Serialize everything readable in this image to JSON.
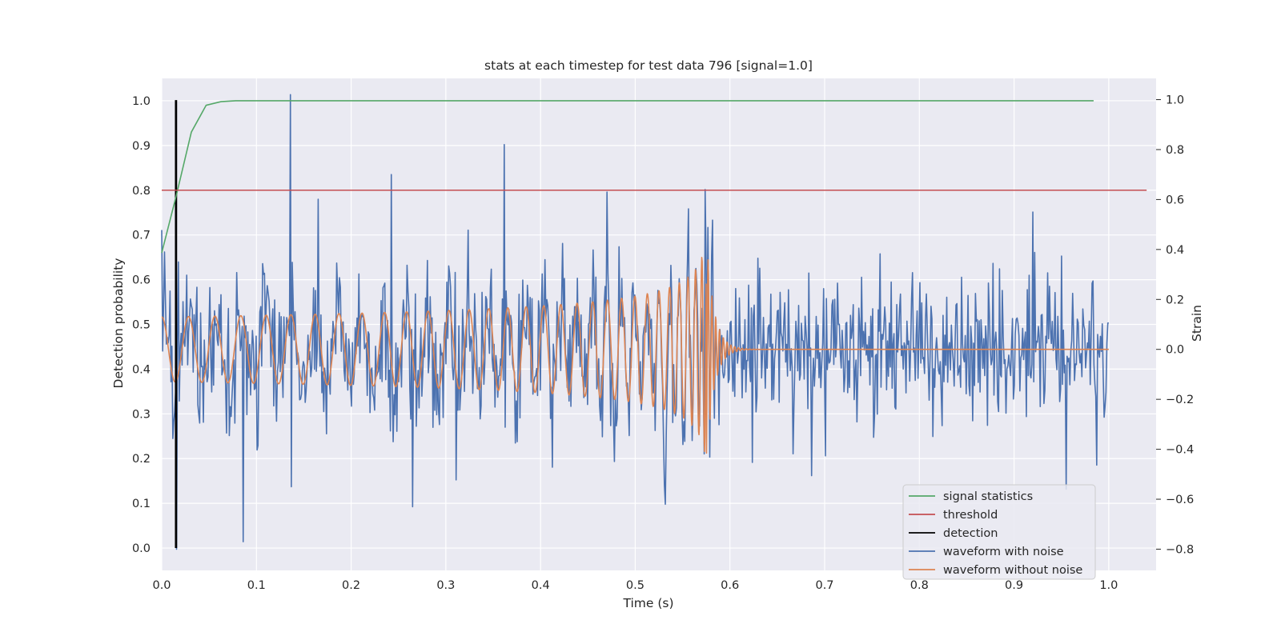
{
  "chart_data": {
    "type": "line",
    "title": "stats at each timestep for test data 796 [signal=1.0]",
    "xlabel": "Time (s)",
    "ylabel": "Detection probability",
    "y2label": "Strain",
    "xlim": [
      0.0,
      1.05
    ],
    "ylim": [
      -0.05,
      1.05
    ],
    "y2lim": [
      -0.885,
      1.085
    ],
    "xticks": [
      0.0,
      0.1,
      0.2,
      0.3,
      0.4,
      0.5,
      0.6,
      0.7,
      0.8,
      0.9,
      1.0
    ],
    "xtick_labels": [
      "0.0",
      "0.1",
      "0.2",
      "0.3",
      "0.4",
      "0.5",
      "0.6",
      "0.7",
      "0.8",
      "0.9",
      "1.0"
    ],
    "yticks": [
      0.0,
      0.1,
      0.2,
      0.3,
      0.4,
      0.5,
      0.6,
      0.7,
      0.8,
      0.9,
      1.0
    ],
    "ytick_labels": [
      "0.0",
      "0.1",
      "0.2",
      "0.3",
      "0.4",
      "0.5",
      "0.6",
      "0.7",
      "0.8",
      "0.9",
      "1.0"
    ],
    "y2ticks": [
      -0.8,
      -0.6,
      -0.4,
      -0.2,
      0.0,
      0.2,
      0.4,
      0.6,
      0.8,
      1.0
    ],
    "y2tick_labels": [
      "−0.8",
      "−0.6",
      "−0.4",
      "−0.2",
      "0.0",
      "0.2",
      "0.4",
      "0.6",
      "0.8",
      "1.0"
    ],
    "grid": true,
    "background": "#eaeaf2",
    "legend_position": "lower-right",
    "legend": [
      {
        "label": "signal statistics",
        "color": "#55a868"
      },
      {
        "label": "threshold",
        "color": "#c44e52"
      },
      {
        "label": "detection",
        "color": "#000000"
      },
      {
        "label": "waveform with noise",
        "color": "#4c72b0"
      },
      {
        "label": "waveform without noise",
        "color": "#dd8452"
      }
    ],
    "series": [
      {
        "name": "signal statistics",
        "axis": "left",
        "color": "#55a868",
        "x": [
          0.0,
          0.0156,
          0.0313,
          0.0469,
          0.0625,
          0.0781,
          0.1,
          0.2,
          0.4,
          0.6,
          0.8,
          0.984
        ],
        "y": [
          0.66,
          0.79,
          0.93,
          0.99,
          0.998,
          1.0,
          1.0,
          1.0,
          1.0,
          1.0,
          1.0,
          1.0
        ]
      },
      {
        "name": "threshold",
        "axis": "left",
        "color": "#c44e52",
        "x": [
          0.0,
          1.04
        ],
        "y": [
          0.8,
          0.8
        ]
      },
      {
        "name": "detection",
        "axis": "left",
        "color": "#000000",
        "x": [
          0.0146,
          0.0146,
          0.0156,
          0.0156
        ],
        "y": [
          0.0,
          1.0,
          1.0,
          0.0
        ]
      },
      {
        "name": "waveform with noise",
        "axis": "right",
        "color": "#4c72b0",
        "x_start": 0.0,
        "x_end": 1.0,
        "n_points": 1024,
        "noise_amplitude": 0.14,
        "peaks": [
          {
            "x": 0.003,
            "y": 0.39
          },
          {
            "x": 0.0137,
            "y": -0.25
          },
          {
            "x": 0.0156,
            "y": -0.8
          },
          {
            "x": 0.018,
            "y": 0.35
          },
          {
            "x": 0.086,
            "y": -0.77
          },
          {
            "x": 0.136,
            "y": 1.02
          },
          {
            "x": 0.137,
            "y": -0.55
          },
          {
            "x": 0.242,
            "y": 0.7
          },
          {
            "x": 0.265,
            "y": -0.63
          },
          {
            "x": 0.362,
            "y": 0.82
          },
          {
            "x": 0.47,
            "y": 0.63
          },
          {
            "x": 0.532,
            "y": -0.62
          },
          {
            "x": 0.574,
            "y": 0.64
          },
          {
            "x": 0.92,
            "y": 0.55
          },
          {
            "x": 0.955,
            "y": -0.56
          }
        ]
      },
      {
        "name": "waveform without noise",
        "axis": "right",
        "color": "#dd8452",
        "x_start": 0.0,
        "x_end": 1.0,
        "merger_time": 0.575,
        "start_frequency": 35,
        "amplitude_start": 0.13,
        "amplitude_peak": 0.42,
        "trough_at_merger": -0.46,
        "ringdown_tau": 0.008
      }
    ]
  }
}
